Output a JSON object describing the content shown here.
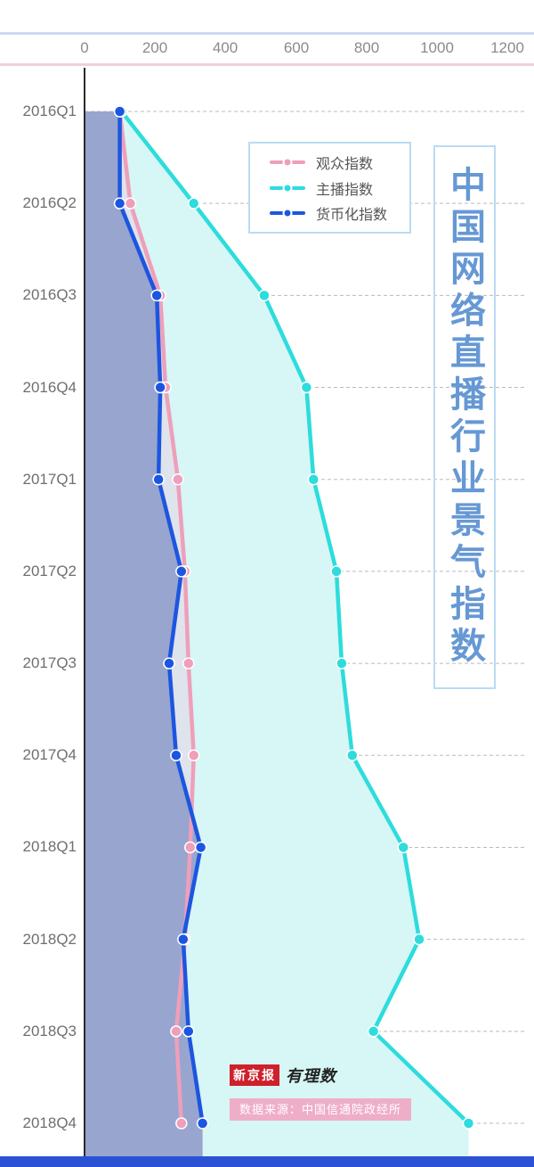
{
  "title": {
    "text": "中国网络直播行业景气指数",
    "color": "#6698d4",
    "border_color": "#badbf2"
  },
  "legend": {
    "items": [
      {
        "label": "观众指数",
        "color": "#ee9fba"
      },
      {
        "label": "主播指数",
        "color": "#2edcdc"
      },
      {
        "label": "货币化指数",
        "color": "#1c56e0"
      }
    ]
  },
  "footer": {
    "logo_left": "新京报",
    "logo_right": "有理数",
    "source": "数据来源：中国信通院政经所"
  },
  "chart_data": {
    "type": "line",
    "title": "中国网络直播行业景气指数",
    "orientation": "value-axis-on-top, time-axis-vertical",
    "grid": "dashed-horizontal",
    "legend_position": "top-center",
    "categories": [
      "2016Q1",
      "2016Q2",
      "2016Q3",
      "2016Q4",
      "2017Q1",
      "2017Q2",
      "2017Q3",
      "2017Q4",
      "2018Q1",
      "2018Q2",
      "2018Q3",
      "2018Q4"
    ],
    "x_axis": {
      "min": 0,
      "max": 1200,
      "ticks": [
        0,
        200,
        400,
        600,
        800,
        1000,
        1200
      ]
    },
    "series": [
      {
        "name": "观众指数",
        "color": "#ee9fba",
        "fill": "#dfe3ec",
        "values": [
          100,
          130,
          215,
          230,
          265,
          285,
          295,
          310,
          300,
          285,
          260,
          275
        ]
      },
      {
        "name": "主播指数",
        "color": "#2edcdc",
        "fill": "#d7f6f6",
        "values": [
          105,
          310,
          510,
          630,
          650,
          715,
          730,
          760,
          905,
          950,
          820,
          1090
        ]
      },
      {
        "name": "货币化指数",
        "color": "#1c56e0",
        "fill": "#98a5cf",
        "values": [
          100,
          100,
          205,
          215,
          210,
          275,
          240,
          260,
          330,
          280,
          295,
          335
        ]
      }
    ]
  }
}
